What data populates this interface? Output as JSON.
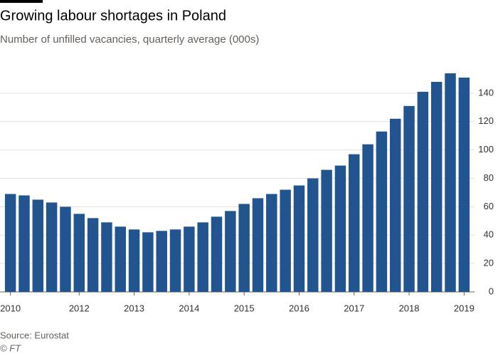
{
  "chart_data": {
    "type": "bar",
    "title": "Growing labour shortages in Poland",
    "subtitle": "Number of unfilled vacancies, quarterly average (000s)",
    "source": "Source: Eurostat",
    "credit": "© FT",
    "categories": [
      "2010",
      null,
      null,
      null,
      null,
      "2012",
      null,
      null,
      null,
      "2013",
      null,
      null,
      null,
      "2014",
      null,
      null,
      null,
      "2015",
      null,
      null,
      null,
      "2016",
      null,
      null,
      null,
      "2017",
      null,
      null,
      null,
      "2018",
      null,
      null,
      null,
      "2019"
    ],
    "values": [
      69,
      68,
      65,
      63,
      60,
      55,
      52,
      49,
      46,
      44,
      42,
      43,
      44,
      46,
      49,
      53,
      57,
      62,
      66,
      69,
      72,
      75,
      80,
      86,
      89,
      97,
      104,
      113,
      122,
      131,
      141,
      148,
      154,
      151
    ],
    "color": "#22558f",
    "ylim": [
      0,
      155
    ],
    "yticks": [
      0,
      20,
      40,
      60,
      80,
      100,
      120,
      140
    ],
    "grid": true
  }
}
